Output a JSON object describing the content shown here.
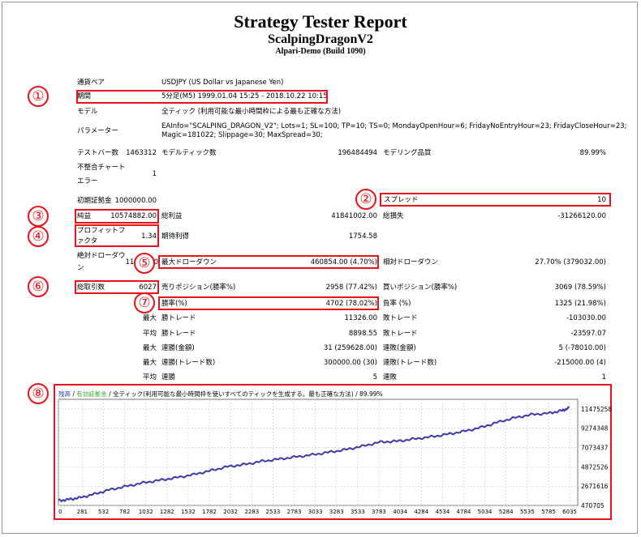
{
  "header": {
    "title": "Strategy Tester Report",
    "ea_name": "ScalpingDragonV2",
    "server": "Alpari-Demo (Build 1090)"
  },
  "rows": [
    {
      "label": "通貨ペア",
      "value": "USDJPY (US Dollar vs Japanese Yen)"
    },
    {
      "label": "期間",
      "value": "5分足(M5) 1999.01.04 15:25 - 2018.10.22 10:15"
    },
    {
      "label": "モデル",
      "value": "全ティック (利用可能な最小時間枠による最も正確な方法)"
    },
    {
      "label": "パラメーター",
      "value": "EAInfo=\"SCALPING_DRAGON_V2\"; Lots=1; SL=100; TP=10; TS=0; MondayOpenHour=6; FridayNoEntryHour=23; FridayCloseHour=23;",
      "value2": "Magic=181022; Slippage=30; MaxSpread=30;"
    }
  ],
  "stats": {
    "bars_label": "テストバー数",
    "bars": "1463312",
    "ticks_label": "モデルティック数",
    "ticks": "196484494",
    "quality_label": "モデリング品質",
    "quality": "89.99%",
    "mismatch_label1": "不整合チャート",
    "mismatch_label2": "エラー",
    "mismatch": "1",
    "deposit_label": "初期証拠金",
    "deposit": "1000000.00",
    "spread_label": "スプレッド",
    "spread": "10",
    "net_label": "純益",
    "net": "10574882.00",
    "gross_profit_label": "総利益",
    "gross_profit": "41841002.00",
    "gross_loss_label": "総損失",
    "gross_loss": "-31266120.00",
    "pf_label1": "プロフィットフ",
    "pf_label2": "ァクタ",
    "pf": "1.34",
    "exp_label": "期待利得",
    "exp": "1754.58",
    "abs_dd_label1": "絶対ドローダウ",
    "abs_dd_label2": "ン",
    "abs_dd": "11000.00",
    "max_dd_label": "最大ドローダウン",
    "max_dd": "460854.00 (4.70%)",
    "rel_dd_label": "相対ドローダウン",
    "rel_dd": "27.70% (379032.00)",
    "total_label": "総取引数",
    "total": "6027",
    "short_label": "売りポジション(勝率%)",
    "short": "2958 (77.42%)",
    "long_label": "買いポジション(勝率%)",
    "long": "3069 (78.59%)",
    "win_label": "勝率(%)",
    "win": "4702 (78.02%)",
    "loss_label": "負率 (%)",
    "loss": "1325 (21.98%)",
    "largest": "最大",
    "largest_win_label": "勝トレード",
    "largest_win": "11326.00",
    "largest_loss_label": "敗トレード",
    "largest_loss": "-103030.00",
    "average": "平均",
    "avg_win_label": "勝トレード",
    "avg_win": "8898.55",
    "avg_loss_label": "敗トレード",
    "avg_loss": "-23597.07",
    "max1": "最大",
    "cons_wins_label": "連勝(金額)",
    "cons_wins": "31 (259628.00)",
    "cons_losses_label": "連敗(金額)",
    "cons_losses": "5 (-78010.00)",
    "max2": "最大",
    "cons_profit_label": "連勝(トレード数)",
    "cons_profit": "300000.00 (30)",
    "cons_loss_label": "連敗(トレード数)",
    "cons_loss": "-215000.00 (4)",
    "avg2": "平均",
    "avg_cons_wins_label": "連勝",
    "avg_cons_wins": "5",
    "avg_cons_losses_label": "連敗",
    "avg_cons_losses": "1"
  },
  "markers": [
    "①",
    "②",
    "③",
    "④",
    "⑤",
    "⑥",
    "⑦",
    "⑧"
  ],
  "chart_legend": {
    "balance": "残高",
    "sep1": " / ",
    "equity": "有効証拠金",
    "sep2": " / ",
    "model": "全ティック(利用可能な最小時間枠を使いすべてのティックを生成する。最も正確な方法)",
    "sep3": " / ",
    "quality": "89.99%"
  },
  "colors": {
    "marker": "#e8141b",
    "balance_line": "#3a3aa8",
    "equity_legend": "#33aa33",
    "balance_legend": "#2233bb"
  },
  "chart_data": {
    "type": "line",
    "title": "",
    "xlabel": "",
    "ylabel": "",
    "x_ticks": [
      "0",
      "281",
      "532",
      "782",
      "1032",
      "1282",
      "1532",
      "1782",
      "2032",
      "2283",
      "2533",
      "2783",
      "3033",
      "3283",
      "3533",
      "3783",
      "4034",
      "4284",
      "4534",
      "4784",
      "5034",
      "5284",
      "5535",
      "5785",
      "6035"
    ],
    "y_ticks": [
      "11475258",
      "9274348",
      "7073437",
      "4872526",
      "2671616",
      "470705"
    ],
    "ylim": [
      470705,
      12575713
    ],
    "xlim": [
      0,
      6130
    ],
    "series": [
      {
        "name": "残高",
        "x": [
          0,
          120,
          250,
          420,
          600,
          800,
          1000,
          1200,
          1400,
          1600,
          1800,
          2000,
          2200,
          2400,
          2600,
          2800,
          3000,
          3200,
          3400,
          3600,
          3800,
          4000,
          4200,
          4400,
          4600,
          4800,
          5000,
          5200,
          5400,
          5600,
          5800,
          5950,
          6027
        ],
        "y": [
          1000000,
          1150000,
          1350000,
          1750000,
          2250000,
          2650000,
          3050000,
          3350000,
          3650000,
          4000000,
          4450000,
          4900000,
          5150000,
          5500000,
          5750000,
          6000000,
          6250000,
          6550000,
          6850000,
          7250000,
          7700000,
          7800000,
          8050000,
          8300000,
          8600000,
          8950000,
          9400000,
          10000000,
          10500000,
          10850000,
          11000000,
          11300000,
          11574882
        ]
      }
    ]
  }
}
